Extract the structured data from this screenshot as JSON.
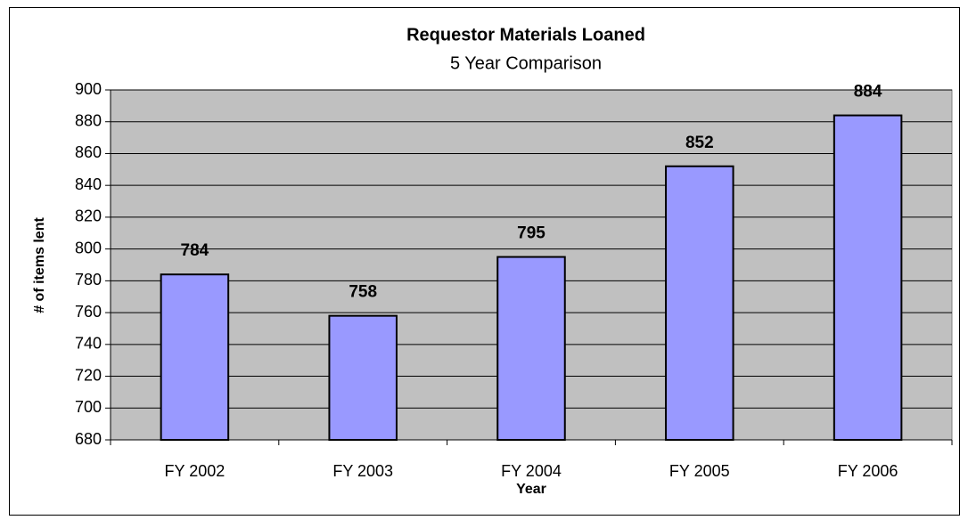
{
  "chart_data": {
    "type": "bar",
    "title": "Requestor Materials Loaned",
    "subtitle": "5 Year Comparison",
    "x_label": "Year",
    "y_label": "# of items lent",
    "categories": [
      "FY 2002",
      "FY 2003",
      "FY 2004",
      "FY 2005",
      "FY 2006"
    ],
    "values": [
      784,
      758,
      795,
      852,
      884
    ],
    "color": "#9999ff",
    "ylim": [
      680,
      900
    ],
    "yticks": [
      680,
      700,
      720,
      740,
      760,
      780,
      800,
      820,
      840,
      860,
      880,
      900
    ],
    "grid": true
  }
}
